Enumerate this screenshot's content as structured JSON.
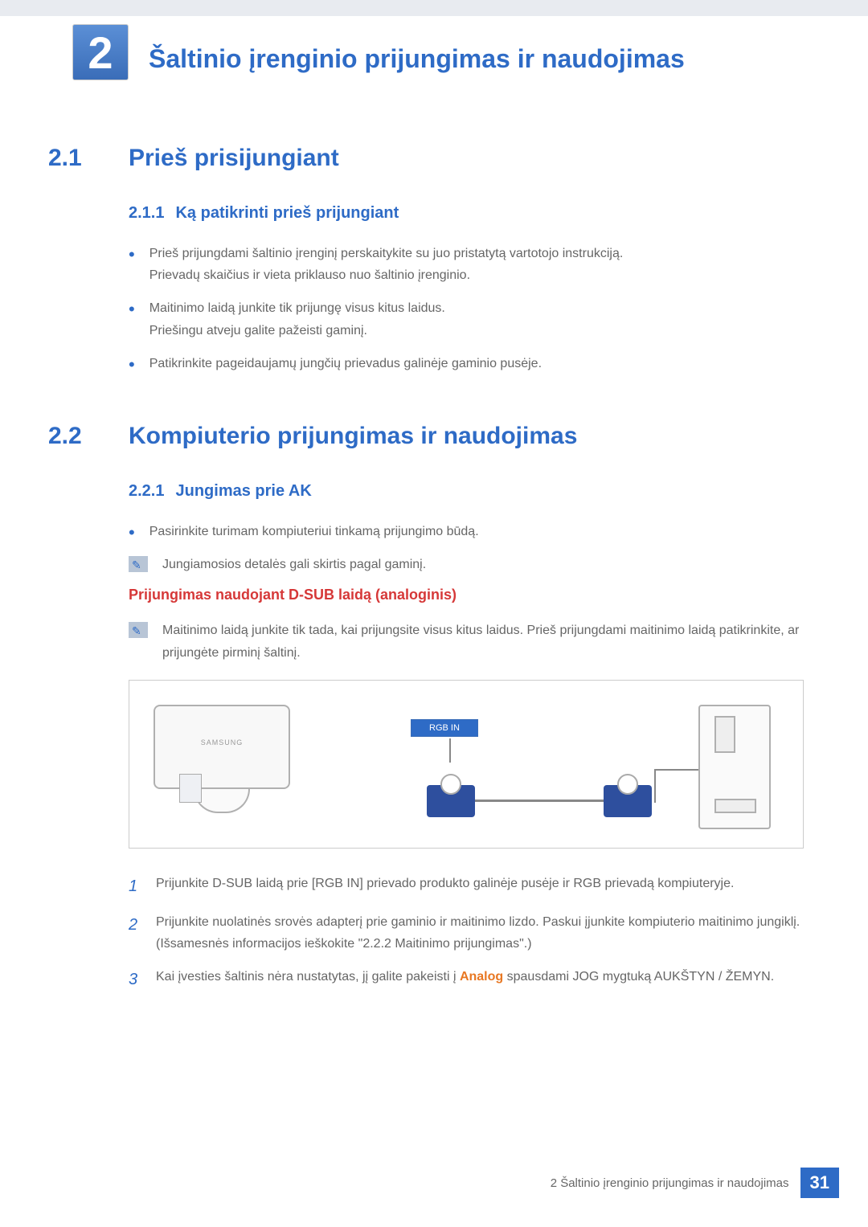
{
  "chapter": {
    "number": "2",
    "title": "Šaltinio įrenginio prijungimas ir naudojimas"
  },
  "sections": {
    "s21": {
      "num": "2.1",
      "title": "Prieš prisijungiant",
      "sub": {
        "num": "2.1.1",
        "title": "Ką patikrinti prieš prijungiant"
      },
      "bullets": {
        "b1a": "Prieš prijungdami šaltinio įrenginį perskaitykite su juo pristatytą vartotojo instrukciją.",
        "b1b": "Prievadų skaičius ir vieta priklauso nuo šaltinio įrenginio.",
        "b2a": "Maitinimo laidą junkite tik prijungę visus kitus laidus.",
        "b2b": "Priešingu atveju galite pažeisti gaminį.",
        "b3": "Patikrinkite pageidaujamų jungčių prievadus galinėje gaminio pusėje."
      }
    },
    "s22": {
      "num": "2.2",
      "title": "Kompiuterio prijungimas ir naudojimas",
      "sub": {
        "num": "2.2.1",
        "title": "Jungimas prie AK"
      },
      "bullet1": "Pasirinkite turimam kompiuteriui tinkamą prijungimo būdą.",
      "note1": "Jungiamosios detalės gali skirtis pagal gaminį.",
      "redTitle": "Prijungimas naudojant D-SUB laidą (analoginis)",
      "note2": "Maitinimo laidą junkite tik tada, kai prijungsite visus kitus laidus. Prieš prijungdami maitinimo laidą patikrinkite, ar prijungėte pirminį šaltinį.",
      "portLabel": "RGB IN",
      "steps": {
        "s1": "Prijunkite D-SUB laidą prie [RGB IN] prievado produkto galinėje pusėje ir RGB prievadą kompiuteryje.",
        "s2": "Prijunkite nuolatinės srovės adapterį prie gaminio ir maitinimo lizdo. Paskui įjunkite kompiuterio maitinimo jungiklį. (Išsamesnės informacijos ieškokite \"2.2.2    Maitinimo prijungimas\".)",
        "s3a": "Kai įvesties šaltinis nėra nustatytas, jį galite pakeisti į ",
        "s3b": "Analog",
        "s3c": " spausdami JOG mygtuką AUKŠTYN / ŽEMYN."
      }
    }
  },
  "footer": {
    "text": "2 Šaltinio įrenginio prijungimas ir naudojimas",
    "page": "31"
  },
  "colors": {
    "primary": "#2e6bc6",
    "red": "#d63838",
    "orange": "#e87722",
    "connector": "#2e4f9e",
    "text": "#666666"
  }
}
